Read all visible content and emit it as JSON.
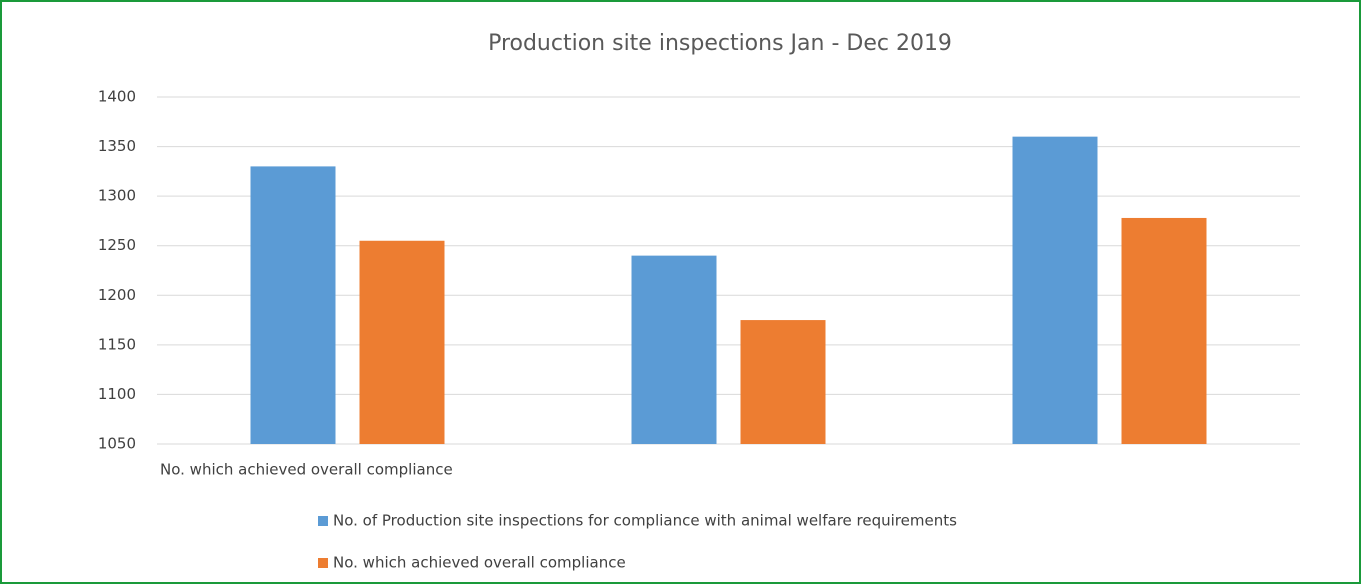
{
  "chart_data": {
    "type": "bar",
    "title": "Production site inspections Jan - Dec 2019",
    "categories": [
      "No. which achieved overall compliance",
      null,
      null
    ],
    "series": [
      {
        "name": "No. of Production site inspections for compliance with animal welfare requirements",
        "color": "#5b9bd5",
        "values": [
          1330,
          1240,
          1360
        ]
      },
      {
        "name": "No. which achieved overall compliance",
        "color": "#ed7d31",
        "values": [
          1255,
          1175,
          1278
        ]
      }
    ],
    "ylim": [
      1050,
      1400
    ],
    "yticks": [
      1050,
      1100,
      1150,
      1200,
      1250,
      1300,
      1350,
      1400
    ],
    "grid": true,
    "legend": "bottom"
  }
}
